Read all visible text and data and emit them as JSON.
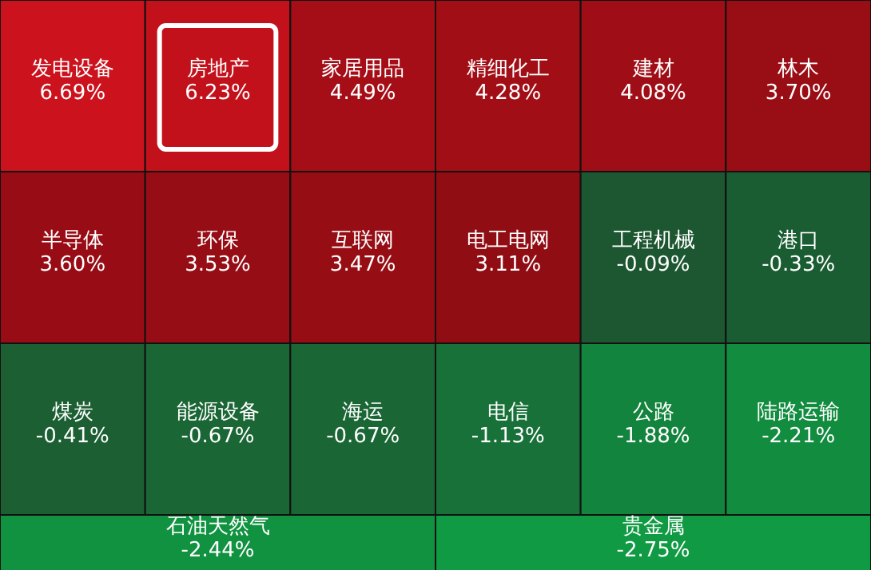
{
  "chart_data": {
    "type": "other",
    "categories": [
      "发电设备",
      "房地产",
      "家居用品",
      "精细化工",
      "建材",
      "林木",
      "半导体",
      "环保",
      "互联网",
      "电工电网",
      "工程机械",
      "港口",
      "煤炭",
      "能源设备",
      "海运",
      "电信",
      "公路",
      "陆路运输",
      "石油天然气",
      "贵金属"
    ],
    "values": [
      6.69,
      6.23,
      4.49,
      4.28,
      4.08,
      3.7,
      3.6,
      3.53,
      3.47,
      3.11,
      -0.09,
      -0.33,
      -0.41,
      -0.67,
      -0.67,
      -1.13,
      -1.88,
      -2.21,
      -2.44,
      -2.75
    ],
    "value_labels": [
      "6.69%",
      "6.23%",
      "4.49%",
      "4.28%",
      "4.08%",
      "3.70%",
      "3.60%",
      "3.53%",
      "3.47%",
      "3.11%",
      "-0.09%",
      "-0.33%",
      "-0.41%",
      "-0.67%",
      "-0.67%",
      "-1.13%",
      "-1.88%",
      "-2.21%",
      "-2.44%",
      "-2.75%"
    ]
  }
}
